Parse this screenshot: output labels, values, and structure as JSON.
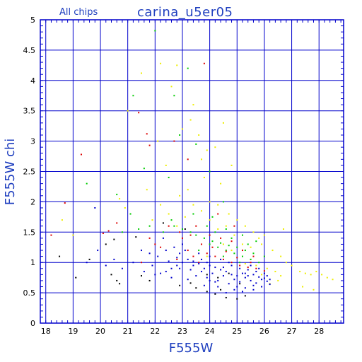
{
  "chart_data": {
    "type": "scatter",
    "title": "carina_u5er05",
    "subtitle": "All chips",
    "xlabel": "F555W",
    "ylabel": "F555W chi",
    "xlim": [
      17.8,
      28.9
    ],
    "ylim": [
      0,
      5
    ],
    "x_ticks": [
      18,
      19,
      20,
      21,
      22,
      23,
      24,
      25,
      26,
      27,
      28
    ],
    "y_ticks": [
      0,
      0.5,
      1,
      1.5,
      2,
      2.5,
      3,
      3.5,
      4,
      4.5,
      5
    ],
    "grid": true,
    "colors": {
      "frame": "#0000cc",
      "grid": "#0000cc",
      "text": "#1f3fbf",
      "chip_blue": "#0000cc",
      "chip_green": "#00cc00",
      "chip_red": "#dd0000",
      "chip_yellow": "#eeee00",
      "chip_black": "#000000"
    },
    "series": [
      {
        "color": "#0000cc",
        "points": [
          [
            24.9,
            0.72
          ],
          [
            25.1,
            0.68
          ],
          [
            25.3,
            0.75
          ],
          [
            25.5,
            0.7
          ],
          [
            25.7,
            0.66
          ],
          [
            25.9,
            0.72
          ],
          [
            26.1,
            0.69
          ],
          [
            25.2,
            0.82
          ],
          [
            25.4,
            0.78
          ],
          [
            25.6,
            0.8
          ],
          [
            25.8,
            0.76
          ],
          [
            26.0,
            0.74
          ],
          [
            24.6,
            0.85
          ],
          [
            24.8,
            0.8
          ],
          [
            24.4,
            0.88
          ],
          [
            24.2,
            0.92
          ],
          [
            24.0,
            0.95
          ],
          [
            23.8,
            0.9
          ],
          [
            23.6,
            0.98
          ],
          [
            23.4,
            1.02
          ],
          [
            23.2,
            1.05
          ],
          [
            23.0,
            1.0
          ],
          [
            22.8,
            0.95
          ],
          [
            22.6,
            0.9
          ],
          [
            22.4,
            0.85
          ],
          [
            22.2,
            0.82
          ],
          [
            22.0,
            0.8
          ],
          [
            23.5,
            0.78
          ],
          [
            23.9,
            0.75
          ],
          [
            24.3,
            0.7
          ],
          [
            24.7,
            0.65
          ],
          [
            25.0,
            0.6
          ],
          [
            25.3,
            0.58
          ],
          [
            25.6,
            0.62
          ],
          [
            25.9,
            0.6
          ],
          [
            26.2,
            0.64
          ],
          [
            24.5,
            0.78
          ],
          [
            24.1,
            0.82
          ],
          [
            23.7,
            0.85
          ],
          [
            23.3,
            0.88
          ],
          [
            22.9,
            0.9
          ],
          [
            22.5,
            1.02
          ],
          [
            22.1,
            1.1
          ],
          [
            21.8,
            1.15
          ],
          [
            21.5,
            1.2
          ],
          [
            21.2,
            1.0
          ],
          [
            20.5,
            1.05
          ],
          [
            20.2,
            0.95
          ],
          [
            19.9,
            1.2
          ],
          [
            19.5,
            1.0
          ],
          [
            19.8,
            1.9
          ],
          [
            22.3,
            1.4
          ],
          [
            22.7,
            1.25
          ],
          [
            23.1,
            1.2
          ],
          [
            23.6,
            1.15
          ],
          [
            24.0,
            1.1
          ],
          [
            24.4,
            1.05
          ],
          [
            24.8,
            0.95
          ],
          [
            25.1,
            0.9
          ],
          [
            25.4,
            0.88
          ],
          [
            25.7,
            0.85
          ],
          [
            26.0,
            0.82
          ],
          [
            24.9,
            0.55
          ],
          [
            25.2,
            0.52
          ],
          [
            24.6,
            0.5
          ],
          [
            23.8,
            0.62
          ],
          [
            23.2,
            0.72
          ],
          [
            22.6,
            0.75
          ],
          [
            23.0,
            1.3
          ],
          [
            22.9,
            1.15
          ],
          [
            24.2,
            0.68
          ],
          [
            25.8,
            0.9
          ],
          [
            26.1,
            0.78
          ],
          [
            25.5,
            0.95
          ],
          [
            24.7,
            1.0
          ],
          [
            23.9,
            1.0
          ],
          [
            23.4,
            0.95
          ],
          [
            21.9,
            0.95
          ],
          [
            21.6,
            0.85
          ],
          [
            20.8,
            0.9
          ],
          [
            24.3,
            0.6
          ],
          [
            24.0,
            0.7
          ],
          [
            25.0,
            0.78
          ],
          [
            25.3,
            0.82
          ],
          [
            26.2,
            0.72
          ],
          [
            25.6,
            0.55
          ],
          [
            24.5,
            0.92
          ],
          [
            23.7,
            1.05
          ],
          [
            22.8,
            1.08
          ],
          [
            22.4,
            1.2
          ]
        ]
      },
      {
        "color": "#00cc00",
        "points": [
          [
            22.0,
            4.82
          ],
          [
            21.2,
            3.75
          ],
          [
            22.7,
            3.75
          ],
          [
            23.2,
            4.2
          ],
          [
            22.9,
            3.1
          ],
          [
            23.5,
            2.95
          ],
          [
            21.6,
            2.55
          ],
          [
            22.5,
            2.4
          ],
          [
            24.0,
            2.5
          ],
          [
            24.5,
            2.0
          ],
          [
            19.5,
            2.3
          ],
          [
            20.6,
            2.12
          ],
          [
            21.1,
            1.8
          ],
          [
            24.0,
            1.3
          ],
          [
            24.3,
            1.25
          ],
          [
            24.6,
            1.2
          ],
          [
            24.9,
            1.15
          ],
          [
            25.2,
            1.1
          ],
          [
            25.5,
            1.05
          ],
          [
            25.8,
            1.0
          ],
          [
            23.8,
            1.4
          ],
          [
            24.1,
            1.35
          ],
          [
            24.4,
            1.32
          ],
          [
            24.7,
            1.28
          ],
          [
            25.0,
            1.25
          ],
          [
            25.3,
            1.2
          ],
          [
            25.6,
            1.15
          ],
          [
            23.5,
            1.45
          ],
          [
            23.3,
            1.5
          ],
          [
            23.0,
            1.55
          ],
          [
            22.7,
            1.6
          ],
          [
            24.2,
            1.5
          ],
          [
            24.8,
            1.4
          ],
          [
            25.4,
            1.3
          ],
          [
            26.0,
            1.1
          ],
          [
            22.3,
            1.5
          ],
          [
            21.8,
            1.6
          ],
          [
            21.4,
            1.55
          ],
          [
            20.8,
            1.5
          ],
          [
            23.6,
            1.2
          ],
          [
            24.5,
            1.1
          ],
          [
            25.1,
            1.0
          ],
          [
            23.9,
            1.6
          ],
          [
            24.6,
            1.55
          ],
          [
            25.2,
            1.45
          ],
          [
            25.7,
            1.35
          ],
          [
            23.4,
            1.8
          ],
          [
            24.1,
            1.75
          ],
          [
            22.6,
            1.7
          ]
        ]
      },
      {
        "color": "#dd0000",
        "points": [
          [
            21.4,
            3.47
          ],
          [
            23.8,
            4.28
          ],
          [
            21.7,
            3.12
          ],
          [
            21.8,
            2.93
          ],
          [
            22.7,
            3.0
          ],
          [
            23.2,
            2.7
          ],
          [
            19.3,
            2.78
          ],
          [
            18.7,
            1.98
          ],
          [
            18.2,
            1.45
          ],
          [
            20.3,
            1.52
          ],
          [
            20.1,
            1.48
          ],
          [
            20.6,
            1.65
          ],
          [
            21.8,
            1.4
          ],
          [
            22.0,
            1.3
          ],
          [
            22.2,
            1.25
          ],
          [
            23.0,
            1.4
          ],
          [
            23.2,
            1.2
          ],
          [
            23.4,
            1.1
          ],
          [
            23.6,
            1.0
          ],
          [
            23.9,
            1.15
          ],
          [
            24.2,
            1.1
          ],
          [
            24.5,
            1.05
          ],
          [
            24.8,
            1.0
          ],
          [
            25.1,
            0.95
          ],
          [
            25.4,
            0.92
          ],
          [
            25.7,
            0.9
          ],
          [
            26.0,
            0.86
          ],
          [
            24.0,
            1.45
          ],
          [
            24.4,
            1.4
          ],
          [
            24.8,
            1.35
          ],
          [
            25.2,
            1.2
          ],
          [
            25.6,
            1.1
          ],
          [
            22.5,
            1.6
          ],
          [
            22.9,
            1.5
          ],
          [
            23.3,
            1.45
          ],
          [
            23.7,
            1.3
          ],
          [
            24.1,
            1.25
          ],
          [
            24.6,
            1.18
          ],
          [
            25.0,
            1.08
          ],
          [
            25.5,
            1.0
          ],
          [
            21.5,
            1.0
          ],
          [
            22.8,
            1.05
          ],
          [
            23.5,
            1.6
          ],
          [
            24.3,
            1.8
          ],
          [
            24.9,
            1.6
          ]
        ]
      },
      {
        "color": "#eeee00",
        "points": [
          [
            21.5,
            4.12
          ],
          [
            22.2,
            4.28
          ],
          [
            22.8,
            4.25
          ],
          [
            22.6,
            3.9
          ],
          [
            23.4,
            3.6
          ],
          [
            23.3,
            3.35
          ],
          [
            23.0,
            3.2
          ],
          [
            23.6,
            3.1
          ],
          [
            23.9,
            2.85
          ],
          [
            24.2,
            2.9
          ],
          [
            23.7,
            2.7
          ],
          [
            24.5,
            3.3
          ],
          [
            24.8,
            2.6
          ],
          [
            24.4,
            2.3
          ],
          [
            23.2,
            2.2
          ],
          [
            22.9,
            2.1
          ],
          [
            23.8,
            2.4
          ],
          [
            22.4,
            2.6
          ],
          [
            21.7,
            2.2
          ],
          [
            21.0,
            3.5
          ],
          [
            20.9,
            1.9
          ],
          [
            22.1,
            3.0
          ],
          [
            24.0,
            2.0
          ],
          [
            24.3,
            1.95
          ],
          [
            24.7,
            1.8
          ],
          [
            25.0,
            1.7
          ],
          [
            25.3,
            1.6
          ],
          [
            25.6,
            1.5
          ],
          [
            25.9,
            1.3
          ],
          [
            26.3,
            1.2
          ],
          [
            26.6,
            1.1
          ],
          [
            26.8,
            1.0
          ],
          [
            27.0,
            0.95
          ],
          [
            27.3,
            0.85
          ],
          [
            27.5,
            0.82
          ],
          [
            27.7,
            0.8
          ],
          [
            27.9,
            0.85
          ],
          [
            28.1,
            0.8
          ],
          [
            28.3,
            0.75
          ],
          [
            28.5,
            0.72
          ],
          [
            27.4,
            0.6
          ],
          [
            27.8,
            0.55
          ],
          [
            26.5,
            0.7
          ],
          [
            26.2,
            0.65
          ],
          [
            26.7,
            1.55
          ],
          [
            26.0,
            1.45
          ],
          [
            25.8,
            1.4
          ],
          [
            25.5,
            1.25
          ],
          [
            25.2,
            1.3
          ],
          [
            24.9,
            1.45
          ],
          [
            24.6,
            1.6
          ],
          [
            24.3,
            1.55
          ],
          [
            24.0,
            1.7
          ],
          [
            23.7,
            1.85
          ],
          [
            23.4,
            1.95
          ],
          [
            23.1,
            1.75
          ],
          [
            22.8,
            1.6
          ],
          [
            22.5,
            1.8
          ],
          [
            22.2,
            1.95
          ],
          [
            21.9,
            1.7
          ],
          [
            18.6,
            1.7
          ],
          [
            19.0,
            1.45
          ],
          [
            20.7,
            2.05
          ],
          [
            25.3,
            0.98
          ],
          [
            25.7,
            0.95
          ],
          [
            26.1,
            0.9
          ],
          [
            26.4,
            0.85
          ],
          [
            26.6,
            0.78
          ],
          [
            25.9,
            0.8
          ],
          [
            24.5,
            1.3
          ],
          [
            24.8,
            1.2
          ],
          [
            23.9,
            1.1
          ]
        ]
      },
      {
        "color": "#000000",
        "points": [
          [
            19.1,
            0.75
          ],
          [
            20.4,
            0.8
          ],
          [
            20.6,
            0.7
          ],
          [
            20.7,
            0.65
          ],
          [
            21.5,
            0.78
          ],
          [
            21.8,
            0.7
          ],
          [
            23.5,
            0.58
          ],
          [
            23.9,
            0.52
          ],
          [
            24.2,
            0.48
          ],
          [
            24.6,
            0.42
          ],
          [
            25.0,
            0.4
          ],
          [
            25.3,
            0.45
          ],
          [
            22.9,
            0.62
          ],
          [
            23.3,
            0.66
          ],
          [
            24.4,
            0.55
          ],
          [
            20.2,
            1.3
          ],
          [
            20.5,
            1.38
          ],
          [
            21.3,
            1.42
          ],
          [
            23.9,
            0.8
          ],
          [
            24.3,
            0.75
          ],
          [
            24.7,
            0.82
          ],
          [
            25.1,
            0.65
          ],
          [
            18.5,
            1.1
          ],
          [
            19.6,
            1.05
          ],
          [
            23.1,
            1.55
          ],
          [
            22.3,
            1.65
          ]
        ]
      }
    ]
  }
}
